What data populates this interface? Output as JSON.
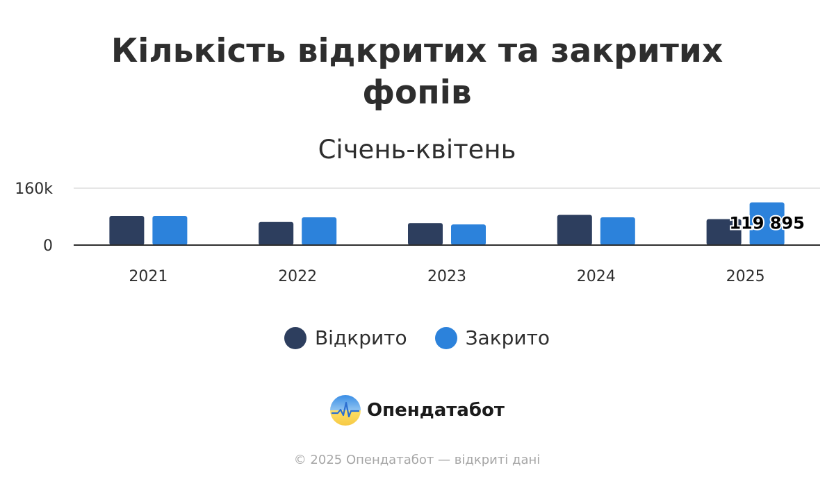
{
  "chart_data": {
    "type": "bar",
    "title": "Кількість відкритих та закритих фопів",
    "title_lines": [
      "Кількість відкритих та закритих",
      "фопів"
    ],
    "subtitle": "Січень-квітень",
    "categories": [
      "2021",
      "2022",
      "2023",
      "2024",
      "2025"
    ],
    "series": [
      {
        "name": "Відкрито",
        "color": "#2d3e5e",
        "values": [
          82000,
          65000,
          62000,
          85000,
          73000
        ]
      },
      {
        "name": "Закрито",
        "color": "#2c82db",
        "values": [
          82000,
          78000,
          58000,
          78000,
          119895
        ]
      }
    ],
    "ylim": [
      0,
      160000
    ],
    "y_ticks": [
      {
        "value": 0,
        "label": "0"
      },
      {
        "value": 160000,
        "label": "160k"
      }
    ],
    "data_labels": [
      {
        "series": 1,
        "index": 4,
        "text": "119 895"
      }
    ],
    "grid": true,
    "legend_position": "bottom"
  },
  "brand": {
    "name": "Опендатабот"
  },
  "footer": {
    "copyright": "© 2025 Опендатабот — відкриті дані"
  }
}
